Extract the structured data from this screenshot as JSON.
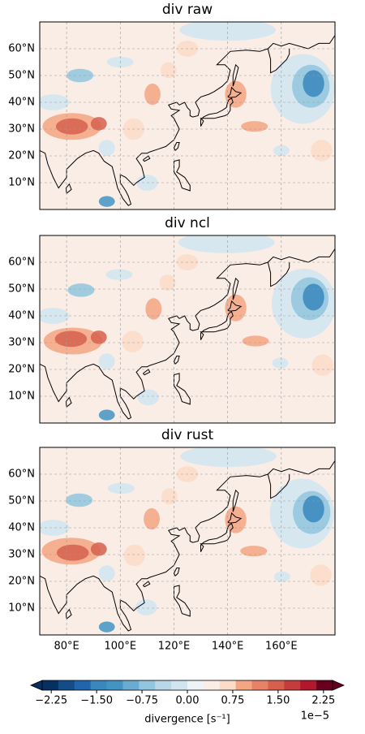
{
  "chart_data": {
    "type": "map",
    "panels": [
      {
        "title": "div raw"
      },
      {
        "title": "div ncl"
      },
      {
        "title": "div rust"
      }
    ],
    "xlim": [
      70,
      180
    ],
    "ylim": [
      0,
      70
    ],
    "xticks": [
      {
        "value": 80,
        "label": "80°E"
      },
      {
        "value": 100,
        "label": "100°E"
      },
      {
        "value": 120,
        "label": "120°E"
      },
      {
        "value": 140,
        "label": "140°E"
      },
      {
        "value": 160,
        "label": "160°E"
      }
    ],
    "yticks": [
      {
        "value": 10,
        "label": "10°N"
      },
      {
        "value": 20,
        "label": "20°N"
      },
      {
        "value": 30,
        "label": "30°N"
      },
      {
        "value": 40,
        "label": "40°N"
      },
      {
        "value": 50,
        "label": "50°N"
      },
      {
        "value": 60,
        "label": "60°N"
      }
    ],
    "grid": true,
    "colorbar": {
      "label": "divergence [s⁻¹]",
      "offset_label": "1e−5",
      "lim": [
        -2.4,
        2.4
      ],
      "ticks": [
        {
          "value": -2.25,
          "label": "−2.25"
        },
        {
          "value": -1.5,
          "label": "−1.50"
        },
        {
          "value": -0.75,
          "label": "−0.75"
        },
        {
          "value": 0,
          "label": "0.00"
        },
        0.75,
        {
          "value": 1.5,
          "label": "1.50"
        },
        2.25
      ],
      "colors": [
        "#053061",
        "#134c87",
        "#2166ac",
        "#3a87bd",
        "#4393c3",
        "#6aacd0",
        "#92c5de",
        "#b8d8e8",
        "#d1e5f0",
        "#eef3f6",
        "#f9ede6",
        "#fddbc7",
        "#f4a582",
        "#e58267",
        "#d6604d",
        "#c43c3c",
        "#b2182b",
        "#67001f"
      ]
    }
  }
}
